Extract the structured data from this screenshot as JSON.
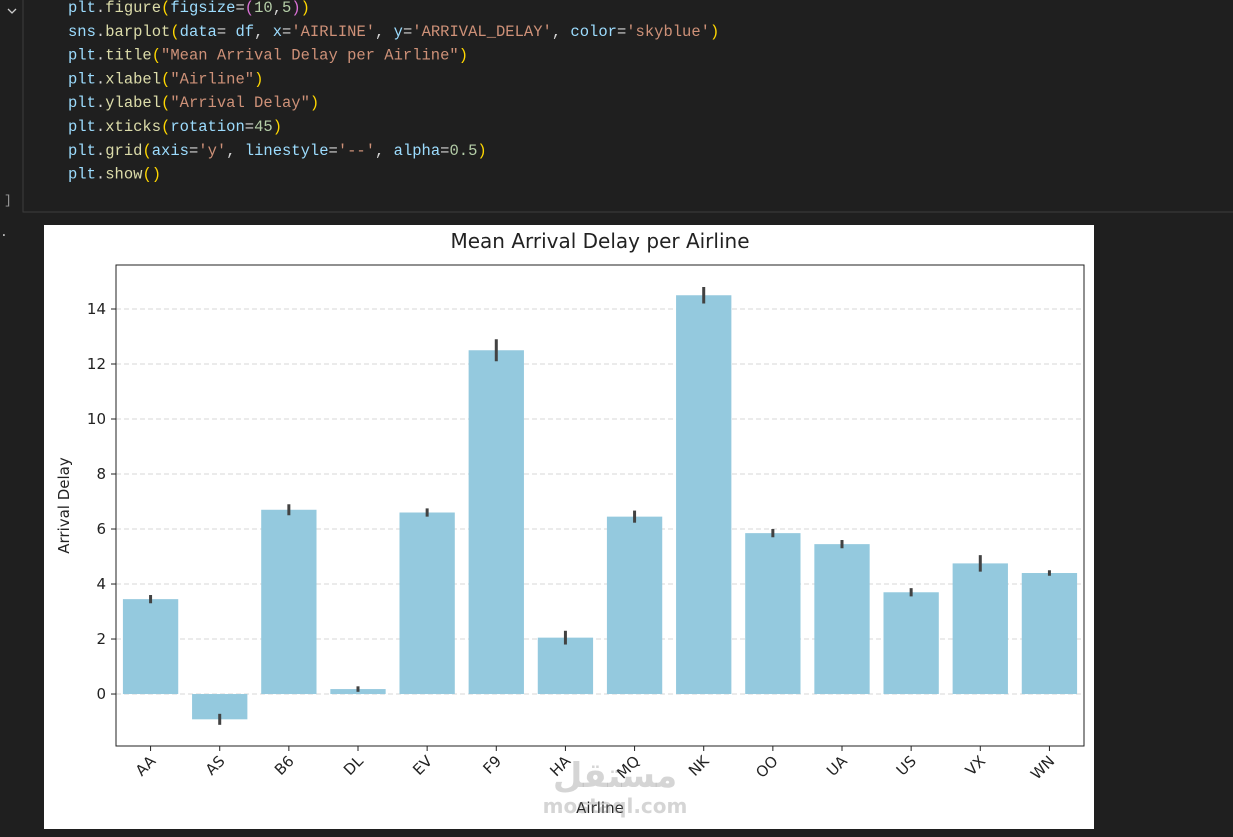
{
  "code": {
    "lines": [
      [
        {
          "text": "plt",
          "color": "#9cdcfe"
        },
        {
          "text": ".",
          "color": "#d4d4d4"
        },
        {
          "text": "figure",
          "color": "#dcdcaa"
        },
        {
          "text": "(",
          "color": "#ffd700"
        },
        {
          "text": "figsize",
          "color": "#9cdcfe"
        },
        {
          "text": "=",
          "color": "#d4d4d4"
        },
        {
          "text": "(",
          "color": "#da70d6"
        },
        {
          "text": "10",
          "color": "#b5cea8"
        },
        {
          "text": ",",
          "color": "#d4d4d4"
        },
        {
          "text": "5",
          "color": "#b5cea8"
        },
        {
          "text": ")",
          "color": "#da70d6"
        },
        {
          "text": ")",
          "color": "#ffd700"
        }
      ],
      [
        {
          "text": "sns",
          "color": "#9cdcfe"
        },
        {
          "text": ".",
          "color": "#d4d4d4"
        },
        {
          "text": "barplot",
          "color": "#dcdcaa"
        },
        {
          "text": "(",
          "color": "#ffd700"
        },
        {
          "text": "data",
          "color": "#9cdcfe"
        },
        {
          "text": "= ",
          "color": "#d4d4d4"
        },
        {
          "text": "df",
          "color": "#9cdcfe"
        },
        {
          "text": ", ",
          "color": "#d4d4d4"
        },
        {
          "text": "x",
          "color": "#9cdcfe"
        },
        {
          "text": "=",
          "color": "#d4d4d4"
        },
        {
          "text": "'AIRLINE'",
          "color": "#ce9178"
        },
        {
          "text": ", ",
          "color": "#d4d4d4"
        },
        {
          "text": "y",
          "color": "#9cdcfe"
        },
        {
          "text": "=",
          "color": "#d4d4d4"
        },
        {
          "text": "'ARRIVAL_DELAY'",
          "color": "#ce9178"
        },
        {
          "text": ", ",
          "color": "#d4d4d4"
        },
        {
          "text": "color",
          "color": "#9cdcfe"
        },
        {
          "text": "=",
          "color": "#d4d4d4"
        },
        {
          "text": "'skyblue'",
          "color": "#ce9178"
        },
        {
          "text": ")",
          "color": "#ffd700"
        }
      ],
      [
        {
          "text": "plt",
          "color": "#9cdcfe"
        },
        {
          "text": ".",
          "color": "#d4d4d4"
        },
        {
          "text": "title",
          "color": "#dcdcaa"
        },
        {
          "text": "(",
          "color": "#ffd700"
        },
        {
          "text": "\"Mean Arrival Delay per Airline\"",
          "color": "#ce9178"
        },
        {
          "text": ")",
          "color": "#ffd700"
        }
      ],
      [
        {
          "text": "plt",
          "color": "#9cdcfe"
        },
        {
          "text": ".",
          "color": "#d4d4d4"
        },
        {
          "text": "xlabel",
          "color": "#dcdcaa"
        },
        {
          "text": "(",
          "color": "#ffd700"
        },
        {
          "text": "\"Airline\"",
          "color": "#ce9178"
        },
        {
          "text": ")",
          "color": "#ffd700"
        }
      ],
      [
        {
          "text": "plt",
          "color": "#9cdcfe"
        },
        {
          "text": ".",
          "color": "#d4d4d4"
        },
        {
          "text": "ylabel",
          "color": "#dcdcaa"
        },
        {
          "text": "(",
          "color": "#ffd700"
        },
        {
          "text": "\"Arrival Delay\"",
          "color": "#ce9178"
        },
        {
          "text": ")",
          "color": "#ffd700"
        }
      ],
      [
        {
          "text": "plt",
          "color": "#9cdcfe"
        },
        {
          "text": ".",
          "color": "#d4d4d4"
        },
        {
          "text": "xticks",
          "color": "#dcdcaa"
        },
        {
          "text": "(",
          "color": "#ffd700"
        },
        {
          "text": "rotation",
          "color": "#9cdcfe"
        },
        {
          "text": "=",
          "color": "#d4d4d4"
        },
        {
          "text": "45",
          "color": "#b5cea8"
        },
        {
          "text": ")",
          "color": "#ffd700"
        }
      ],
      [
        {
          "text": "plt",
          "color": "#9cdcfe"
        },
        {
          "text": ".",
          "color": "#d4d4d4"
        },
        {
          "text": "grid",
          "color": "#dcdcaa"
        },
        {
          "text": "(",
          "color": "#ffd700"
        },
        {
          "text": "axis",
          "color": "#9cdcfe"
        },
        {
          "text": "=",
          "color": "#d4d4d4"
        },
        {
          "text": "'y'",
          "color": "#ce9178"
        },
        {
          "text": ", ",
          "color": "#d4d4d4"
        },
        {
          "text": "linestyle",
          "color": "#9cdcfe"
        },
        {
          "text": "=",
          "color": "#d4d4d4"
        },
        {
          "text": "'--'",
          "color": "#ce9178"
        },
        {
          "text": ", ",
          "color": "#d4d4d4"
        },
        {
          "text": "alpha",
          "color": "#9cdcfe"
        },
        {
          "text": "=",
          "color": "#d4d4d4"
        },
        {
          "text": "0.5",
          "color": "#b5cea8"
        },
        {
          "text": ")",
          "color": "#ffd700"
        }
      ],
      [
        {
          "text": "plt",
          "color": "#9cdcfe"
        },
        {
          "text": ".",
          "color": "#d4d4d4"
        },
        {
          "text": "show",
          "color": "#dcdcaa"
        },
        {
          "text": "()",
          "color": "#ffd700"
        }
      ]
    ],
    "cell_prompt": "]",
    "output_prompt": "."
  },
  "chart_data": {
    "type": "bar",
    "title": "Mean Arrival Delay per Airline",
    "xlabel": "Airline",
    "ylabel": "Arrival Delay",
    "categories": [
      "AA",
      "AS",
      "B6",
      "DL",
      "EV",
      "F9",
      "HA",
      "MQ",
      "NK",
      "OO",
      "UA",
      "US",
      "VX",
      "WN"
    ],
    "values": [
      3.45,
      -0.92,
      6.7,
      0.18,
      6.6,
      12.5,
      2.05,
      6.45,
      14.5,
      5.85,
      5.45,
      3.7,
      4.75,
      4.4
    ],
    "errors": [
      0.15,
      0.2,
      0.2,
      0.1,
      0.15,
      0.4,
      0.25,
      0.22,
      0.3,
      0.15,
      0.15,
      0.15,
      0.3,
      0.1
    ],
    "color": "#94c9de",
    "error_color": "#424242",
    "ylim": [
      -1.89,
      15.6
    ],
    "yticks": [
      0,
      2,
      4,
      6,
      8,
      10,
      12,
      14
    ],
    "grid": true,
    "xtick_rotation": 45
  },
  "watermark": {
    "arabic": "مستقل",
    "latin": "mostaql.com"
  }
}
